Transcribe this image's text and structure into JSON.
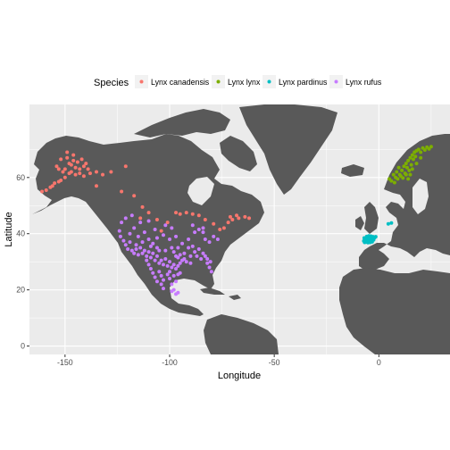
{
  "chart_data": {
    "type": "scatter",
    "title": "",
    "xlabel": "Longitude",
    "ylabel": "Latitude",
    "xlim": [
      -167,
      34
    ],
    "ylim": [
      -3,
      86
    ],
    "x_ticks": [
      -150,
      -100,
      -50,
      0
    ],
    "y_ticks": [
      0,
      20,
      40,
      60
    ],
    "x_tick_labels": [
      "-150",
      "-100",
      "-50",
      "0"
    ],
    "y_tick_labels": [
      "0",
      "20",
      "40",
      "60"
    ],
    "grid": true,
    "legend": {
      "title": "Species",
      "placement": "top"
    },
    "panel_background": "#ebebeb",
    "grid_color": "#ffffff",
    "land_color": "#595959",
    "series": [
      {
        "name": "Lynx canadensis",
        "color": "#F8766D",
        "points": [
          [
            -154,
            64
          ],
          [
            -152,
            66.5
          ],
          [
            -150,
            63
          ],
          [
            -149,
            67
          ],
          [
            -148,
            65
          ],
          [
            -147,
            64.5
          ],
          [
            -146,
            66
          ],
          [
            -145,
            63.5
          ],
          [
            -144,
            65.5
          ],
          [
            -143,
            63
          ],
          [
            -142,
            66.5
          ],
          [
            -141,
            64
          ],
          [
            -140,
            65
          ],
          [
            -139,
            63
          ],
          [
            -145,
            61
          ],
          [
            -148,
            61.5
          ],
          [
            -150,
            60
          ],
          [
            -152,
            59
          ],
          [
            -155,
            58
          ],
          [
            -157,
            56.5
          ],
          [
            -159,
            55.5
          ],
          [
            -161,
            55
          ],
          [
            -156,
            57
          ],
          [
            -153,
            58.5
          ],
          [
            -146,
            68
          ],
          [
            -149,
            69
          ],
          [
            -147,
            62
          ],
          [
            -143,
            61.5
          ],
          [
            -141,
            60.5
          ],
          [
            -151,
            62
          ],
          [
            -153,
            63
          ],
          [
            -138,
            61.5
          ],
          [
            -135,
            62
          ],
          [
            -132,
            61
          ],
          [
            -128,
            62
          ],
          [
            -121,
            64
          ],
          [
            -135,
            57
          ],
          [
            -123,
            55
          ],
          [
            -117,
            53.5
          ],
          [
            -113,
            49.5
          ],
          [
            -110,
            47.5
          ],
          [
            -114,
            45.5
          ],
          [
            -106,
            45
          ],
          [
            -101,
            44
          ],
          [
            -97,
            47.5
          ],
          [
            -95,
            47
          ],
          [
            -92,
            47.5
          ],
          [
            -89,
            47
          ],
          [
            -86,
            46.5
          ],
          [
            -83,
            45
          ],
          [
            -79,
            43.5
          ],
          [
            -76,
            41.5
          ],
          [
            -74,
            42
          ],
          [
            -72,
            44
          ],
          [
            -71,
            46
          ],
          [
            -70,
            45
          ],
          [
            -68,
            46.5
          ],
          [
            -67,
            45.5
          ],
          [
            -64,
            46
          ],
          [
            -62,
            45.5
          ],
          [
            -104,
            41
          ]
        ]
      },
      {
        "name": "Lynx lynx",
        "color": "#7CAE00",
        "points": [
          [
            5,
            59.5
          ],
          [
            6,
            58.8
          ],
          [
            7,
            61
          ],
          [
            7.5,
            58.2
          ],
          [
            8,
            60
          ],
          [
            8.5,
            62
          ],
          [
            9,
            59.5
          ],
          [
            9.5,
            63.5
          ],
          [
            10,
            61
          ],
          [
            10.5,
            60.5
          ],
          [
            11,
            62.5
          ],
          [
            11.5,
            59.8
          ],
          [
            12,
            64
          ],
          [
            12.5,
            61.5
          ],
          [
            13,
            65
          ],
          [
            13.5,
            63.5
          ],
          [
            14,
            66
          ],
          [
            14.5,
            62.5
          ],
          [
            15,
            67
          ],
          [
            15.5,
            64.5
          ],
          [
            16,
            68
          ],
          [
            16.5,
            66.5
          ],
          [
            17,
            69
          ],
          [
            17.5,
            67.5
          ],
          [
            18,
            69.5
          ],
          [
            19,
            70
          ],
          [
            20,
            69
          ],
          [
            21,
            70.5
          ],
          [
            22,
            69.8
          ],
          [
            23,
            70.8
          ],
          [
            24,
            70.2
          ],
          [
            25,
            71
          ],
          [
            14,
            59.5
          ],
          [
            15,
            61
          ],
          [
            16,
            63
          ],
          [
            18,
            65
          ],
          [
            20,
            67
          ],
          [
            13,
            61
          ]
        ]
      },
      {
        "name": "Lynx pardinus",
        "color": "#00BFC4",
        "points": [
          [
            -7,
            38.5
          ],
          [
            -6.5,
            37.5
          ],
          [
            -6,
            38.3
          ],
          [
            -5.5,
            37.2
          ],
          [
            -5,
            38
          ],
          [
            -4.5,
            37.5
          ],
          [
            -4,
            38.2
          ],
          [
            -3.5,
            37.6
          ],
          [
            -3,
            38.4
          ],
          [
            -2.5,
            37.8
          ],
          [
            -6.2,
            37
          ],
          [
            -5.2,
            36.8
          ],
          [
            -4.2,
            36.9
          ],
          [
            -3.2,
            37.1
          ],
          [
            -7.2,
            37.4
          ],
          [
            -6.8,
            36.9
          ],
          [
            -2,
            38.6
          ],
          [
            -1.5,
            38.9
          ],
          [
            -5.8,
            39
          ],
          [
            -4.8,
            39.2
          ],
          [
            -3.8,
            39.1
          ],
          [
            -2.8,
            38.9
          ],
          [
            4.5,
            43.5
          ],
          [
            6,
            43.8
          ]
        ]
      },
      {
        "name": "Lynx rufus",
        "color": "#C77CFF",
        "points": [
          [
            -122,
            37.5
          ],
          [
            -121,
            36
          ],
          [
            -120,
            34.5
          ],
          [
            -119,
            37
          ],
          [
            -118,
            34
          ],
          [
            -117,
            33
          ],
          [
            -116,
            34.5
          ],
          [
            -115,
            32.5
          ],
          [
            -114,
            35
          ],
          [
            -113,
            33
          ],
          [
            -112,
            34
          ],
          [
            -111,
            32
          ],
          [
            -110,
            33.5
          ],
          [
            -109,
            31.5
          ],
          [
            -108,
            33
          ],
          [
            -107,
            30.5
          ],
          [
            -106,
            32
          ],
          [
            -105,
            29.5
          ],
          [
            -104,
            30.5
          ],
          [
            -103,
            29
          ],
          [
            -102,
            31
          ],
          [
            -101,
            28.5
          ],
          [
            -100,
            30
          ],
          [
            -99,
            28
          ],
          [
            -98,
            29
          ],
          [
            -97,
            27.5
          ],
          [
            -96,
            28.5
          ],
          [
            -95,
            29.5
          ],
          [
            -94,
            30.5
          ],
          [
            -93,
            31
          ],
          [
            -110,
            29
          ],
          [
            -109,
            27.5
          ],
          [
            -108,
            26
          ],
          [
            -107,
            24.5
          ],
          [
            -106,
            23
          ],
          [
            -105,
            26.5
          ],
          [
            -104,
            25
          ],
          [
            -103,
            23.5
          ],
          [
            -100,
            24
          ],
          [
            -99,
            22
          ],
          [
            -98,
            25
          ],
          [
            -97,
            23
          ],
          [
            -100,
            26.5
          ],
          [
            -101,
            25.5
          ],
          [
            -98,
            20
          ],
          [
            -97,
            18.5
          ],
          [
            -99,
            19.5
          ],
          [
            -96,
            19
          ],
          [
            -103,
            20.5
          ],
          [
            -104,
            22
          ],
          [
            -119,
            40
          ],
          [
            -117,
            42
          ],
          [
            -115,
            39
          ],
          [
            -112,
            40.5
          ],
          [
            -110,
            38
          ],
          [
            -106,
            38.5
          ],
          [
            -103,
            39.5
          ],
          [
            -100,
            38
          ],
          [
            -97,
            39
          ],
          [
            -94,
            36.5
          ],
          [
            -91,
            35
          ],
          [
            -90,
            32
          ],
          [
            -88,
            33.5
          ],
          [
            -86,
            34.5
          ],
          [
            -84,
            33
          ],
          [
            -82,
            31
          ],
          [
            -81,
            28
          ],
          [
            -82,
            29.5
          ],
          [
            -80,
            26.5
          ],
          [
            -80.5,
            30
          ],
          [
            -83,
            32
          ],
          [
            -85,
            31
          ],
          [
            -87,
            32
          ],
          [
            -89,
            35.5
          ],
          [
            -91,
            38
          ],
          [
            -93,
            33
          ],
          [
            -95,
            32.5
          ],
          [
            -96,
            31.5
          ],
          [
            -97,
            32
          ],
          [
            -98,
            33.5
          ],
          [
            -99,
            35
          ],
          [
            -88,
            40.5
          ],
          [
            -86,
            41.5
          ],
          [
            -84,
            40.5
          ],
          [
            -83,
            38
          ],
          [
            -81,
            37
          ],
          [
            -79,
            39
          ],
          [
            -77,
            38
          ],
          [
            -123,
            44
          ],
          [
            -121,
            45.5
          ],
          [
            -118,
            46.5
          ],
          [
            -114,
            44
          ],
          [
            -102,
            43
          ],
          [
            -110,
            44.5
          ],
          [
            -107,
            41.5
          ],
          [
            -124,
            41
          ],
          [
            -123.5,
            39
          ],
          [
            -96,
            35
          ],
          [
            -99,
            42
          ],
          [
            -89,
            43
          ],
          [
            -84,
            42
          ],
          [
            -106,
            35
          ],
          [
            -109,
            35.5
          ],
          [
            -108,
            36.5
          ],
          [
            -113,
            37
          ],
          [
            -116,
            36
          ],
          [
            -111,
            30.5
          ],
          [
            -105,
            34
          ],
          [
            -102,
            34
          ],
          [
            -95,
            26
          ],
          [
            -96,
            25.5
          ],
          [
            -92,
            30
          ],
          [
            -90,
            29.5
          ]
        ]
      }
    ]
  }
}
